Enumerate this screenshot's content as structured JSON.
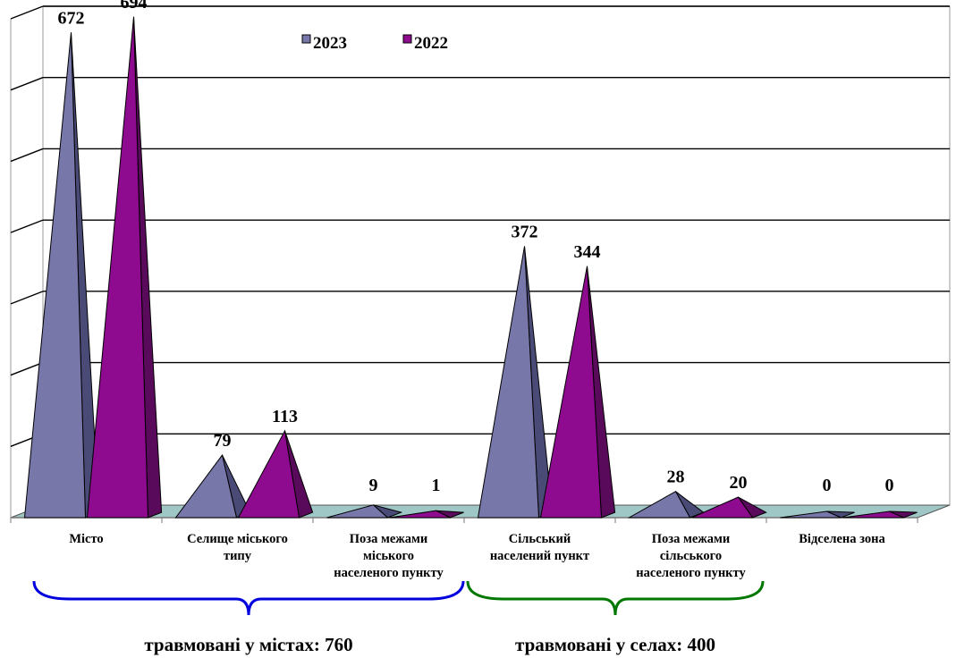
{
  "chart_data": {
    "type": "bar",
    "categories": [
      "Місто",
      "Селище міського типу",
      "Поза межами міського населеного пункту",
      "Сільський населений пункт",
      "Поза межами сільського населеного пункту",
      "Відселена зона"
    ],
    "category_lines": [
      [
        "Місто"
      ],
      [
        "Селище міського",
        "типу"
      ],
      [
        "Поза межами",
        "міського",
        "населеного пункту"
      ],
      [
        "Сільський",
        "населений пункт"
      ],
      [
        "Поза межами",
        "сільського",
        "населеного пункту"
      ],
      [
        "Відселена зона"
      ]
    ],
    "series": [
      {
        "name": "2023",
        "values": [
          672,
          79,
          9,
          372,
          28,
          0
        ],
        "color": "#7777aa",
        "shade": "#4a4a77"
      },
      {
        "name": "2022",
        "values": [
          694,
          113,
          1,
          344,
          20,
          0
        ],
        "color": "#8e0a8e",
        "shade": "#5a0a5a"
      }
    ],
    "ylim": [
      0,
      700
    ],
    "grid": true,
    "legend": "top-center",
    "groups": [
      {
        "label": "травмовані у містах: 760",
        "color": "#0000dd"
      },
      {
        "label": "травмовані у селах: 400",
        "color": "#007700"
      }
    ]
  }
}
